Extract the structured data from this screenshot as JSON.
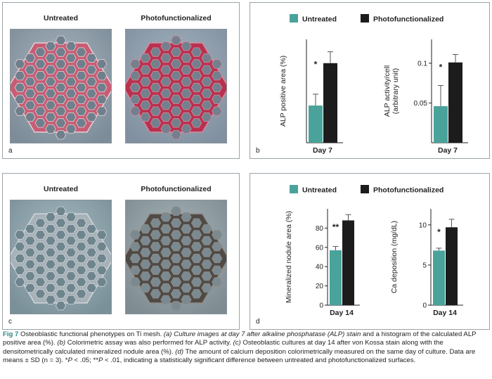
{
  "panel_a": {
    "letter": "a",
    "labels": [
      "Untreated",
      "Photofunctionalized"
    ],
    "palettes": [
      {
        "bg": "#7c8c98",
        "bg2": "#a9b6c0",
        "mesh": "#c75d74",
        "mesh2": "#e7cfd6",
        "hole": "#6f7f8c"
      },
      {
        "bg": "#8090a0",
        "bg2": "#a5b4c0",
        "mesh": "#b8314f",
        "mesh2": "#d68a9c",
        "hole": "#73808e"
      }
    ]
  },
  "panel_c": {
    "letter": "c",
    "labels": [
      "Untreated",
      "Photofunctionalized"
    ],
    "palettes": [
      {
        "bg": "#7a9098",
        "bg2": "#a9bcc4",
        "mesh": "#a7b1b8",
        "mesh2": "#d0d7db",
        "hole": "#6f858e"
      },
      {
        "bg": "#7e8c92",
        "bg2": "#aab6bc",
        "mesh": "#4f4a46",
        "mesh2": "#8f8a84",
        "hole": "#7b8a90"
      }
    ]
  },
  "panel_b": {
    "letter": "b",
    "legend": {
      "untreated": "Untreated",
      "photo": "Photofunctionalized"
    },
    "colors": {
      "untreated": "#4aa39b",
      "photo": "#1c1c1c"
    }
  },
  "panel_d": {
    "letter": "d",
    "legend": {
      "untreated": "Untreated",
      "photo": "Photofunctionalized"
    }
  },
  "chart_data": [
    {
      "type": "bar",
      "panel": "b",
      "categories": [
        "Day 7"
      ],
      "xlabel": "Day 7",
      "ylabel": "ALP positive area (%)",
      "ylim": [
        0,
        100
      ],
      "yticks": [],
      "series": [
        {
          "name": "Untreated",
          "values": [
            36
          ],
          "error": [
            11
          ]
        },
        {
          "name": "Photofunctionalized",
          "values": [
            77
          ],
          "error": [
            11
          ]
        }
      ],
      "annotation": "*"
    },
    {
      "type": "bar",
      "panel": "b",
      "categories": [
        "Day 7"
      ],
      "xlabel": "Day 7",
      "ylabel": "ALP activity/cell\n(arbitrary unit)",
      "ylim": [
        0,
        0.13
      ],
      "yticks": [
        0.05,
        0.1
      ],
      "series": [
        {
          "name": "Untreated",
          "values": [
            0.046
          ],
          "error": [
            0.026
          ]
        },
        {
          "name": "Photofunctionalized",
          "values": [
            0.101
          ],
          "error": [
            0.01
          ]
        }
      ],
      "annotation": "*"
    },
    {
      "type": "bar",
      "panel": "d",
      "categories": [
        "Day 14"
      ],
      "xlabel": "Day 14",
      "ylabel": "Mineralized nodule area (%)",
      "ylim": [
        0,
        100
      ],
      "yticks": [
        0,
        20,
        40,
        60,
        80
      ],
      "series": [
        {
          "name": "Untreated",
          "values": [
            57
          ],
          "error": [
            4
          ]
        },
        {
          "name": "Photofunctionalized",
          "values": [
            88
          ],
          "error": [
            6
          ]
        }
      ],
      "annotation": "**"
    },
    {
      "type": "bar",
      "panel": "d",
      "categories": [
        "Day 14"
      ],
      "xlabel": "Day 14",
      "ylabel": "Ca deposition (mg/dL)",
      "ylim": [
        0,
        12
      ],
      "yticks": [
        0,
        5,
        10
      ],
      "series": [
        {
          "name": "Untreated",
          "values": [
            6.8
          ],
          "error": [
            0.3
          ]
        },
        {
          "name": "Photofunctionalized",
          "values": [
            9.7
          ],
          "error": [
            1.0
          ]
        }
      ],
      "annotation": "*"
    }
  ],
  "caption": {
    "label": "Fig 7",
    "parts": [
      {
        "t": "  Osteoblastic functional phenotypes on Ti mesh. "
      },
      {
        "t": "(a) Culture images at day 7 after alkaline phosphatase (ALP) stain",
        "i": true
      },
      {
        "t": " and a histogram of the calculated ALP positive area (%). "
      },
      {
        "t": "(b)",
        "i": true
      },
      {
        "t": " Colorimetric assay was also performed for ALP activity. "
      },
      {
        "t": "(c)",
        "i": true
      },
      {
        "t": " Osteoblastic cultures at day 14 after von Kossa stain along with the densitometrically calculated mineralized nodule area (%). "
      },
      {
        "t": "(d)",
        "i": true
      },
      {
        "t": " The amount of calcium deposition colorimetrically measured on the same day of culture. Data are means ± SD (n = 3). *"
      },
      {
        "t": "P",
        "i": true
      },
      {
        "t": " < .05; **"
      },
      {
        "t": "P",
        "i": true
      },
      {
        "t": " < .01, indicating a statistically significant difference between untreated and photofunctionalized surfaces."
      }
    ]
  }
}
